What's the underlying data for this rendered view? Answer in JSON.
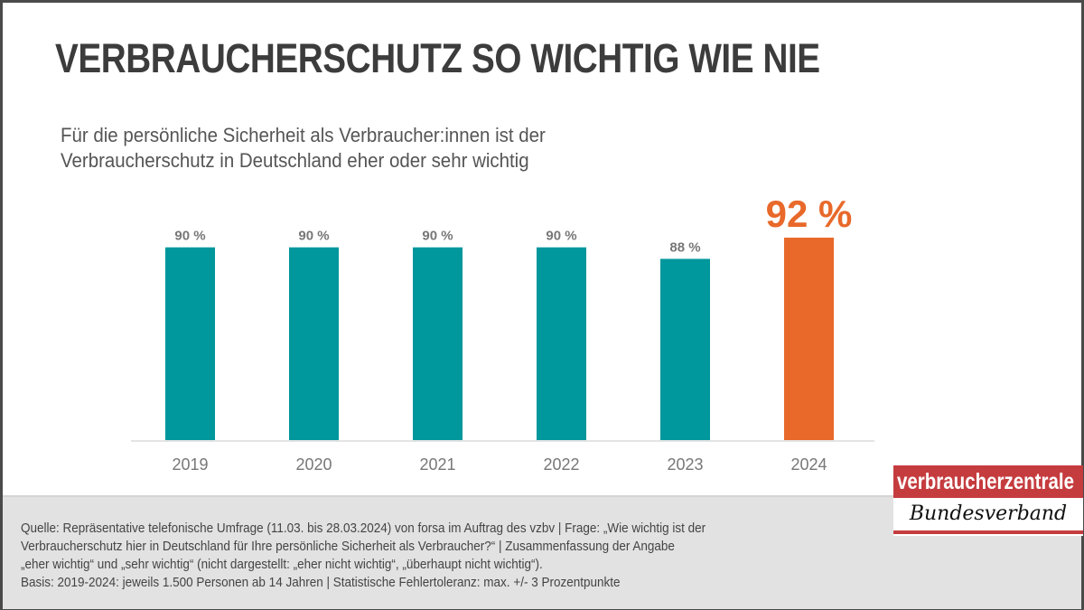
{
  "title": "VERBRAUCHERSCHUTZ SO WICHTIG WIE NIE",
  "subtitle": "Für die persönliche Sicherheit als Verbraucher:innen ist der Verbraucherschutz in Deutschland eher oder sehr wichtig",
  "chart_data": {
    "type": "bar",
    "categories": [
      "2019",
      "2020",
      "2021",
      "2022",
      "2023",
      "2024"
    ],
    "values": [
      90,
      90,
      90,
      90,
      88,
      92
    ],
    "data_labels": [
      "90 %",
      "90 %",
      "90 %",
      "90 %",
      "88 %",
      "92 %"
    ],
    "unit": "%",
    "ylim": [
      0,
      100
    ],
    "grid": false,
    "colors": {
      "default": "#00979d",
      "highlight": "#e8692a",
      "highlight_index": 5
    }
  },
  "footer": {
    "source_lines": [
      "Quelle: Repräsentative telefonische Umfrage (11.03. bis 28.03.2024) von forsa im Auftrag des vzbv | Frage: „Wie wichtig ist der",
      "Verbraucherschutz hier in Deutschland für Ihre persönliche Sicherheit als Verbraucher?“ | Zusammenfassung der Angabe",
      "„eher wichtig“ und „sehr wichtig“ (nicht dargestellt: „eher nicht wichtig“, „überhaupt nicht wichtig“).",
      "Basis: 2019-2024: jeweils 1.500 Personen ab 14 Jahren | Statistische Fehlertoleranz: max. +/- 3 Prozentpunkte"
    ]
  },
  "logo": {
    "top": "verbraucherzentrale",
    "bottom": "Bundesverband"
  }
}
